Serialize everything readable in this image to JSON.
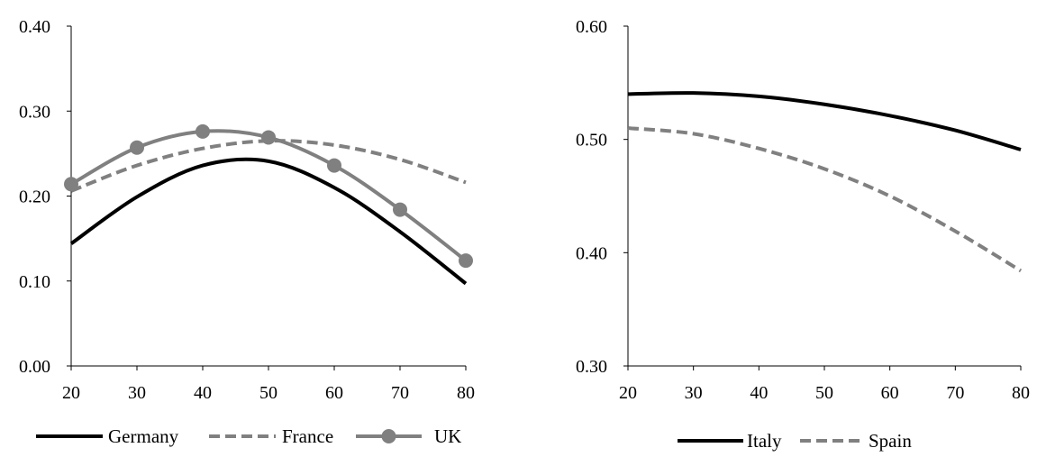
{
  "colors": {
    "axis": "#000000",
    "series_black": "#000000",
    "series_gray": "#808080"
  },
  "chart_data": [
    {
      "type": "line",
      "title": "",
      "xlabel": "",
      "ylabel": "",
      "xlim": [
        20,
        80
      ],
      "ylim": [
        0.0,
        0.4
      ],
      "xticks": [
        "20",
        "30",
        "40",
        "50",
        "60",
        "70",
        "80"
      ],
      "yticks": [
        "0.00",
        "0.10",
        "0.20",
        "0.30",
        "0.40"
      ],
      "grid": false,
      "legend_position": "bottom",
      "x": [
        20,
        30,
        40,
        50,
        60,
        70,
        80
      ],
      "series": [
        {
          "name": "Germany",
          "values": [
            0.144,
            0.199,
            0.236,
            0.241,
            0.21,
            0.158,
            0.097
          ],
          "color": "#000000",
          "style": "solid",
          "marker": "none"
        },
        {
          "name": "France",
          "values": [
            0.206,
            0.236,
            0.256,
            0.265,
            0.26,
            0.243,
            0.216
          ],
          "color": "#808080",
          "style": "dashed",
          "marker": "none"
        },
        {
          "name": "UK",
          "values": [
            0.214,
            0.257,
            0.276,
            0.269,
            0.236,
            0.184,
            0.124
          ],
          "color": "#808080",
          "style": "solid",
          "marker": "circle"
        }
      ]
    },
    {
      "type": "line",
      "title": "",
      "xlabel": "",
      "ylabel": "",
      "xlim": [
        20,
        80
      ],
      "ylim": [
        0.3,
        0.6
      ],
      "xticks": [
        "20",
        "30",
        "40",
        "50",
        "60",
        "70",
        "80"
      ],
      "yticks": [
        "0.30",
        "0.40",
        "0.50",
        "0.60"
      ],
      "grid": false,
      "legend_position": "bottom",
      "x": [
        20,
        30,
        40,
        50,
        60,
        70,
        80
      ],
      "series": [
        {
          "name": "Italy",
          "values": [
            0.54,
            0.541,
            0.538,
            0.531,
            0.521,
            0.508,
            0.491
          ],
          "color": "#000000",
          "style": "solid",
          "marker": "none"
        },
        {
          "name": "Spain",
          "values": [
            0.51,
            0.505,
            0.492,
            0.474,
            0.45,
            0.419,
            0.384
          ],
          "color": "#808080",
          "style": "dashed",
          "marker": "none"
        }
      ]
    }
  ]
}
